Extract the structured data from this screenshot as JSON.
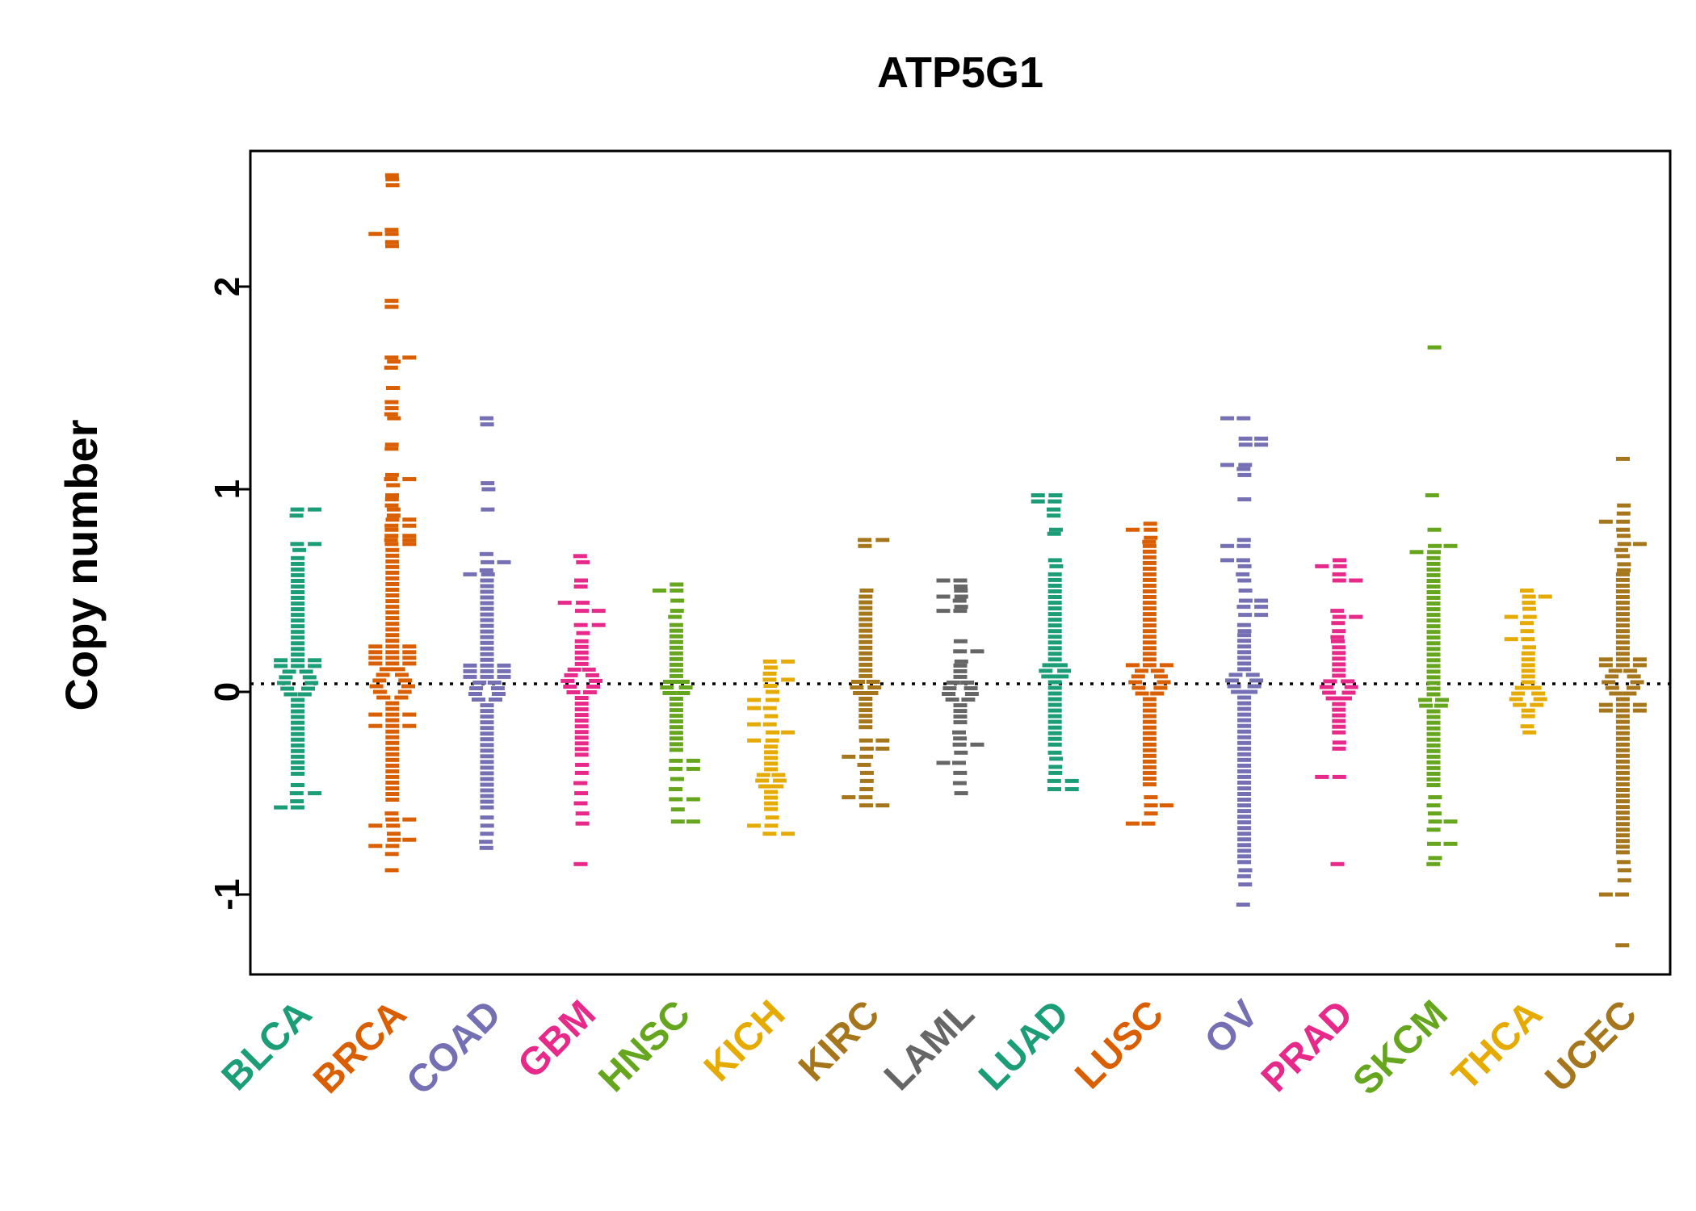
{
  "chart_data": {
    "type": "beeswarm-violin",
    "title": "ATP5G1",
    "ylabel": "Copy number",
    "yticks": [
      -1,
      0,
      1,
      2
    ],
    "ylim": [
      -1.38,
      2.67
    ],
    "baseline_y": 0.04,
    "row_step": 0.028,
    "grid": false,
    "legend": "none",
    "palette": "Dark2",
    "series": [
      {
        "label": "BLCA",
        "color": "#1B9E77",
        "mode": 0.05,
        "dense_min": -0.42,
        "dense_max": 0.66,
        "max_halfwidth": 27,
        "hole_halfwidth": 18,
        "hole_halfheight": 0.12,
        "upper_tail": [
          0.9,
          0.87,
          0.73,
          0.7
        ],
        "lower_tail": [
          -0.46,
          -0.5,
          -0.54,
          -0.57
        ]
      },
      {
        "label": "BRCA",
        "color": "#D95F02",
        "mode": 0.03,
        "dense_min": -0.55,
        "dense_max": 0.7,
        "max_halfwidth": 31,
        "hole_halfwidth": 20,
        "hole_halfheight": 0.13,
        "upper_tail": [
          2.55,
          2.53,
          2.5,
          2.28,
          2.26,
          2.22,
          2.2,
          1.93,
          1.9,
          1.65,
          1.63,
          1.6,
          1.5,
          1.43,
          1.4,
          1.37,
          1.35,
          1.22,
          1.2,
          1.07,
          1.05,
          1.02,
          0.97,
          0.95,
          0.92,
          0.9,
          0.87,
          0.85,
          0.82,
          0.8,
          0.77,
          0.75,
          0.73
        ],
        "lower_tail": [
          -0.6,
          -0.63,
          -0.66,
          -0.7,
          -0.73,
          -0.76,
          -0.8,
          -0.88
        ]
      },
      {
        "label": "COAD",
        "color": "#7570B3",
        "mode": 0.0,
        "dense_min": -0.58,
        "dense_max": 0.55,
        "max_halfwidth": 27,
        "hole_halfwidth": 16,
        "hole_halfheight": 0.11,
        "upper_tail": [
          1.35,
          1.32,
          1.03,
          1.0,
          0.9,
          0.68,
          0.64,
          0.6,
          0.58
        ],
        "lower_tail": [
          -0.62,
          -0.66,
          -0.7,
          -0.74,
          -0.77
        ]
      },
      {
        "label": "GBM",
        "color": "#E7298A",
        "mode": 0.05,
        "dense_min": -0.32,
        "dense_max": 0.25,
        "max_halfwidth": 30,
        "hole_halfwidth": 18,
        "hole_halfheight": 0.12,
        "upper_tail": [
          0.67,
          0.64,
          0.55,
          0.52,
          0.44,
          0.4,
          0.33,
          0.29
        ],
        "lower_tail": [
          -0.36,
          -0.4,
          -0.45,
          -0.5,
          -0.55,
          -0.6,
          -0.65,
          -0.85
        ]
      },
      {
        "label": "HNSC",
        "color": "#66A61E",
        "mode": 0.02,
        "dense_min": -0.3,
        "dense_max": 0.33,
        "max_halfwidth": 18,
        "hole_halfwidth": 12,
        "hole_halfheight": 0.09,
        "upper_tail": [
          0.53,
          0.5,
          0.45,
          0.4,
          0.37
        ],
        "lower_tail": [
          -0.34,
          -0.38,
          -0.43,
          -0.48,
          -0.53,
          -0.58,
          -0.64
        ]
      },
      {
        "label": "KICH",
        "color": "#E6AB02",
        "mode": -0.43,
        "dense_min": -0.58,
        "dense_max": -0.27,
        "max_halfwidth": 18,
        "hole_halfwidth": 12,
        "hole_halfheight": 0.09,
        "upper_tail": [
          0.15,
          0.12,
          0.09,
          0.06,
          0.03,
          0.0,
          -0.04,
          -0.08,
          -0.12,
          -0.16,
          -0.2,
          -0.24
        ],
        "lower_tail": [
          -0.62,
          -0.66,
          -0.7
        ]
      },
      {
        "label": "KIRC",
        "color": "#A6761D",
        "mode": 0.03,
        "dense_min": -0.2,
        "dense_max": 0.47,
        "max_halfwidth": 20,
        "hole_halfwidth": 12,
        "hole_halfheight": 0.09,
        "upper_tail": [
          0.75,
          0.72,
          0.5
        ],
        "lower_tail": [
          -0.24,
          -0.28,
          -0.32,
          -0.36,
          -0.4,
          -0.44,
          -0.48,
          -0.52,
          -0.56
        ]
      },
      {
        "label": "LAML",
        "color": "#666666",
        "mode": 0.0,
        "dense_min": -0.17,
        "dense_max": 0.13,
        "max_halfwidth": 27,
        "hole_halfwidth": 16,
        "hole_halfheight": 0.1,
        "upper_tail": [
          0.55,
          0.52,
          0.5,
          0.47,
          0.45,
          0.42,
          0.4,
          0.25,
          0.2,
          0.15
        ],
        "lower_tail": [
          -0.2,
          -0.23,
          -0.26,
          -0.3,
          -0.35,
          -0.4,
          -0.45,
          -0.5
        ]
      },
      {
        "label": "LUAD",
        "color": "#1B9E77",
        "mode": 0.1,
        "dense_min": -0.27,
        "dense_max": 0.58,
        "max_halfwidth": 20,
        "hole_halfwidth": 12,
        "hole_halfheight": 0.08,
        "upper_tail": [
          0.97,
          0.94,
          0.9,
          0.87,
          0.8,
          0.78,
          0.65,
          0.62
        ],
        "lower_tail": [
          -0.3,
          -0.33,
          -0.37,
          -0.4,
          -0.44,
          -0.48
        ]
      },
      {
        "label": "LUSC",
        "color": "#D95F02",
        "mode": 0.05,
        "dense_min": -0.48,
        "dense_max": 0.72,
        "max_halfwidth": 24,
        "hole_halfwidth": 18,
        "hole_halfheight": 0.12,
        "upper_tail": [
          0.83,
          0.8,
          0.76,
          0.74
        ],
        "lower_tail": [
          -0.52,
          -0.56,
          -0.6,
          -0.65
        ]
      },
      {
        "label": "OV",
        "color": "#7570B3",
        "mode": 0.05,
        "dense_min": -0.85,
        "dense_max": 0.28,
        "max_halfwidth": 20,
        "hole_halfwidth": 16,
        "hole_halfheight": 0.1,
        "upper_tail": [
          1.35,
          1.25,
          1.22,
          1.12,
          1.1,
          1.07,
          0.95,
          0.75,
          0.72,
          0.65,
          0.62,
          0.58,
          0.55,
          0.5,
          0.45,
          0.42,
          0.38,
          0.33,
          0.3
        ],
        "lower_tail": [
          -0.88,
          -0.91,
          -0.95,
          -1.05
        ]
      },
      {
        "label": "PRAD",
        "color": "#E7298A",
        "mode": 0.02,
        "dense_min": -0.22,
        "dense_max": 0.22,
        "max_halfwidth": 24,
        "hole_halfwidth": 16,
        "hole_halfheight": 0.1,
        "upper_tail": [
          0.65,
          0.62,
          0.58,
          0.55,
          0.4,
          0.37,
          0.34,
          0.3,
          0.27,
          0.25
        ],
        "lower_tail": [
          -0.25,
          -0.28,
          -0.42,
          -0.85
        ]
      },
      {
        "label": "SKCM",
        "color": "#66A61E",
        "mode": -0.05,
        "dense_min": -0.48,
        "dense_max": 0.66,
        "max_halfwidth": 20,
        "hole_halfwidth": 12,
        "hole_halfheight": 0.08,
        "upper_tail": [
          1.7,
          0.97,
          0.8,
          0.72,
          0.69
        ],
        "lower_tail": [
          -0.52,
          -0.56,
          -0.6,
          -0.64,
          -0.68,
          -0.75,
          -0.82,
          -0.85
        ]
      },
      {
        "label": "THCA",
        "color": "#E6AB02",
        "mode": -0.03,
        "dense_min": -0.14,
        "dense_max": 0.16,
        "max_halfwidth": 27,
        "hole_halfwidth": 16,
        "hole_halfheight": 0.1,
        "upper_tail": [
          0.5,
          0.47,
          0.44,
          0.41,
          0.37,
          0.34,
          0.3,
          0.26,
          0.22,
          0.19
        ],
        "lower_tail": [
          -0.17,
          -0.2
        ]
      },
      {
        "label": "UCEC",
        "color": "#A6761D",
        "mode": 0.05,
        "dense_min": -0.8,
        "dense_max": 0.58,
        "max_halfwidth": 27,
        "hole_halfwidth": 18,
        "hole_halfheight": 0.11,
        "upper_tail": [
          1.15,
          0.92,
          0.88,
          0.84,
          0.8,
          0.77,
          0.73,
          0.7,
          0.67,
          0.63,
          0.6
        ],
        "lower_tail": [
          -0.84,
          -0.88,
          -0.93,
          -1.0,
          -1.25
        ]
      }
    ]
  }
}
